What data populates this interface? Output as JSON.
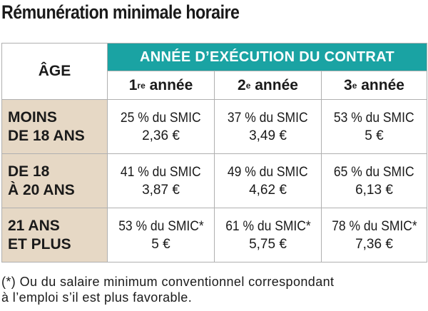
{
  "title": "Rémunération minimale horaire",
  "table": {
    "age_header": "ÂGE",
    "contract_header": "ANNÉE D’EXÉCUTION DU CONTRAT",
    "years": [
      {
        "num": "1",
        "sup": "re",
        "word": " année"
      },
      {
        "num": "2",
        "sup": "e",
        "word": " année"
      },
      {
        "num": "3",
        "sup": "e",
        "word": " année"
      }
    ],
    "rows": [
      {
        "age_line1": "MOINS",
        "age_line2": "DE 18 ANS",
        "cells": [
          {
            "pct": "25 % du SMIC",
            "amount": "2,36 €"
          },
          {
            "pct": "37 % du SMIC",
            "amount": "3,49 €"
          },
          {
            "pct": "53 % du SMIC",
            "amount": "5 €"
          }
        ]
      },
      {
        "age_line1": "DE 18",
        "age_line2": "À 20 ANS",
        "cells": [
          {
            "pct": "41 % du SMIC",
            "amount": "3,87 €"
          },
          {
            "pct": "49 % du SMIC",
            "amount": "4,62 €"
          },
          {
            "pct": "65 % du SMIC",
            "amount": "6,13 €"
          }
        ]
      },
      {
        "age_line1": "21 ANS",
        "age_line2": "ET PLUS",
        "cells": [
          {
            "pct": "53 % du SMIC*",
            "amount": "5 €"
          },
          {
            "pct": "61 % du SMIC*",
            "amount": "5,75 €"
          },
          {
            "pct": "78 % du SMIC*",
            "amount": "7,36 €"
          }
        ]
      }
    ]
  },
  "footnote": {
    "line1": "(*) Ou du salaire minimum conventionnel correspondant",
    "line2": "à l’emploi s’il est plus favorable."
  },
  "colors": {
    "header_teal": "#1aa3a3",
    "age_beige": "#e6d8c5",
    "border": "#b0b0b0"
  }
}
